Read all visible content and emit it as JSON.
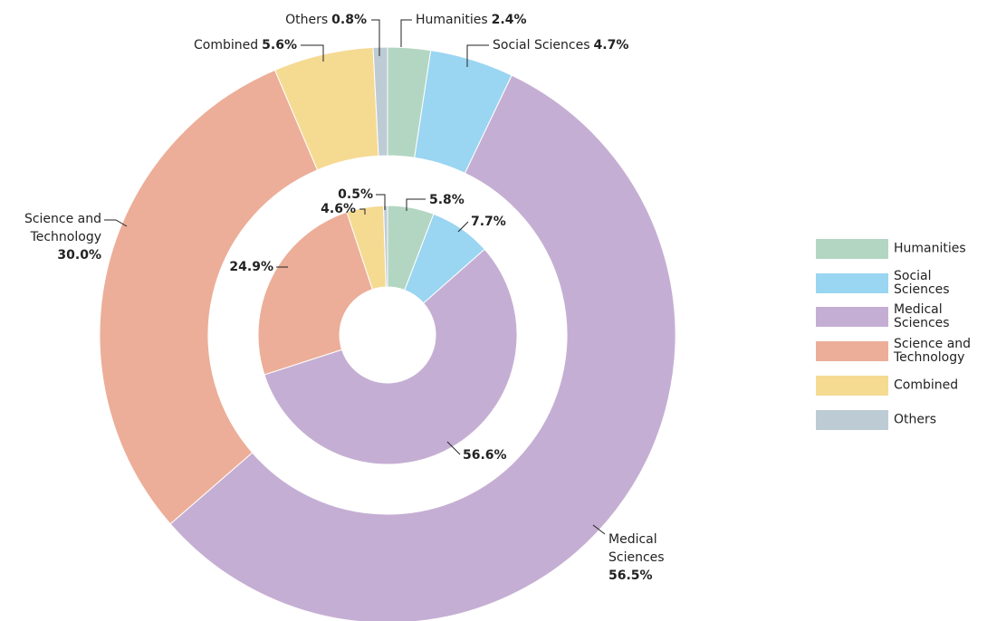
{
  "chart_data": {
    "type": "pie",
    "categories": [
      "Humanities",
      "Social Sciences",
      "Medical Sciences",
      "Science and Technology",
      "Combined",
      "Others"
    ],
    "colors": [
      "#b3d6c3",
      "#9ad5f2",
      "#c5aed3",
      "#ecae98",
      "#f5da92",
      "#bdcbd4"
    ],
    "series": [
      {
        "values": [
          2.4,
          4.7,
          56.5,
          30.0,
          5.6,
          0.8
        ],
        "value_labels": [
          "2.4%",
          "4.7%",
          "56.5%",
          "30.0%",
          "5.6%",
          "0.8%"
        ]
      },
      {
        "values": [
          5.8,
          7.7,
          56.6,
          24.9,
          4.6,
          0.5
        ],
        "value_labels": [
          "5.8%",
          "7.7%",
          "56.6%",
          "24.9%",
          "4.6%",
          "0.5%"
        ]
      }
    ],
    "legend": "right"
  }
}
